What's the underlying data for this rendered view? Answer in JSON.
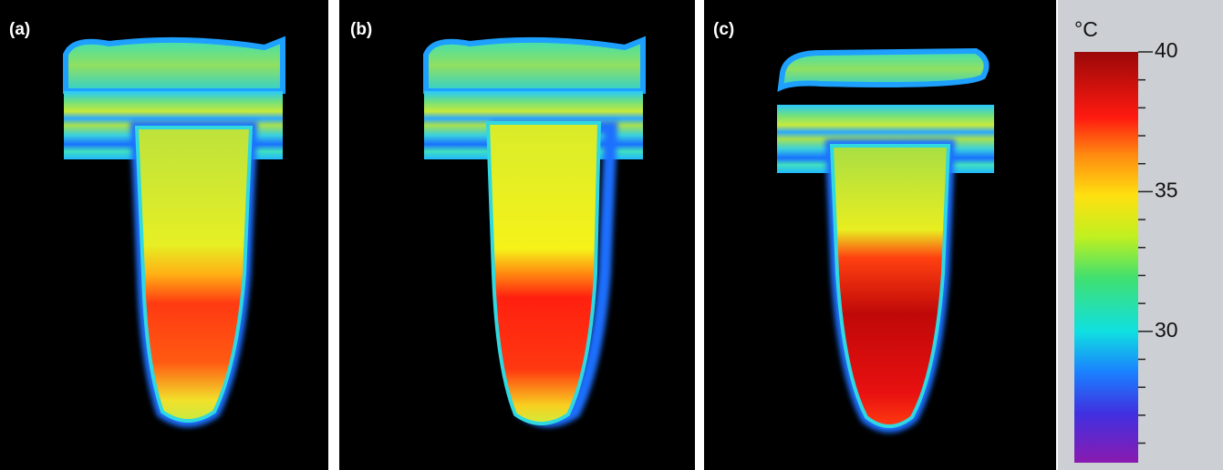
{
  "panels": [
    {
      "label": "(a)"
    },
    {
      "label": "(b)"
    },
    {
      "label": "(c)"
    }
  ],
  "colorbar": {
    "unit": "°C",
    "ylim": [
      25.3,
      40
    ],
    "yticks": [
      30,
      35,
      40
    ],
    "minor_ticks": [
      26,
      27,
      28,
      29,
      31,
      32,
      33,
      34,
      36,
      37,
      38,
      39
    ]
  }
}
